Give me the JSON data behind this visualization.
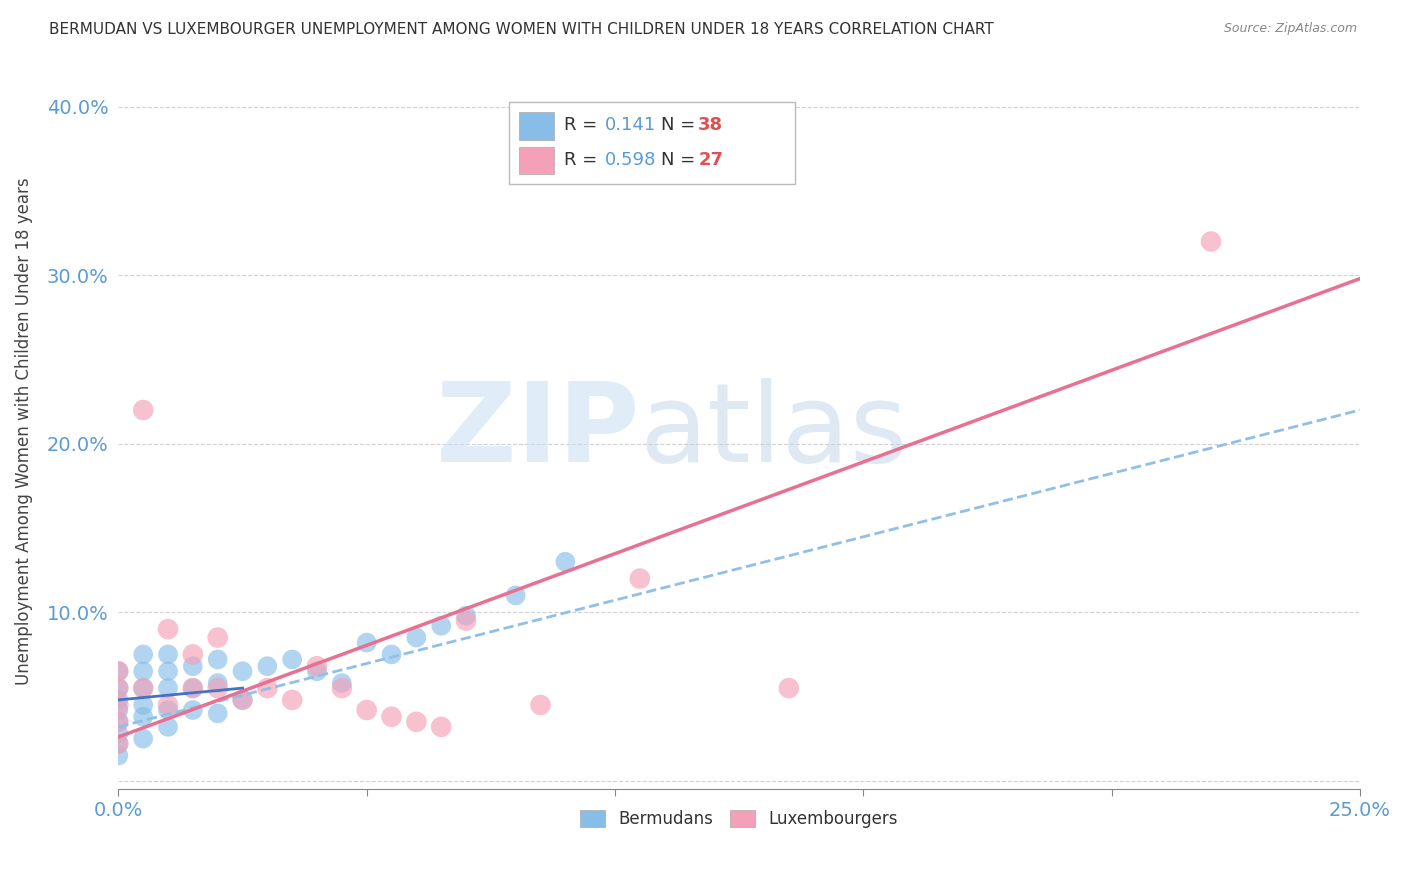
{
  "title": "BERMUDAN VS LUXEMBOURGER UNEMPLOYMENT AMONG WOMEN WITH CHILDREN UNDER 18 YEARS CORRELATION CHART",
  "source": "Source: ZipAtlas.com",
  "ylabel_label": "Unemployment Among Women with Children Under 18 years",
  "xlim": [
    0.0,
    0.25
  ],
  "ylim": [
    -0.005,
    0.42
  ],
  "yticks": [
    0.0,
    0.1,
    0.2,
    0.3,
    0.4
  ],
  "ytick_labels": [
    "",
    "10.0%",
    "20.0%",
    "30.0%",
    "40.0%"
  ],
  "bermudans_color": "#88bde8",
  "luxembourgers_color": "#f4a0b8",
  "trend_bermudans_color": "#90c0e8",
  "trend_luxembourgers_color": "#e87090",
  "r_bermudans": 0.141,
  "n_bermudans": 38,
  "r_luxembourgers": 0.598,
  "n_luxembourgers": 27,
  "bermudans_x": [
    0.0,
    0.0,
    0.0,
    0.0,
    0.0,
    0.0,
    0.0,
    0.0,
    0.005,
    0.005,
    0.005,
    0.005,
    0.005,
    0.005,
    0.01,
    0.01,
    0.01,
    0.01,
    0.01,
    0.015,
    0.015,
    0.015,
    0.02,
    0.02,
    0.02,
    0.025,
    0.025,
    0.03,
    0.035,
    0.04,
    0.045,
    0.05,
    0.055,
    0.06,
    0.065,
    0.07,
    0.08,
    0.09
  ],
  "bermudans_y": [
    0.065,
    0.055,
    0.048,
    0.042,
    0.035,
    0.028,
    0.022,
    0.015,
    0.075,
    0.065,
    0.055,
    0.045,
    0.038,
    0.025,
    0.075,
    0.065,
    0.055,
    0.042,
    0.032,
    0.068,
    0.055,
    0.042,
    0.072,
    0.058,
    0.04,
    0.065,
    0.048,
    0.068,
    0.072,
    0.065,
    0.058,
    0.082,
    0.075,
    0.085,
    0.092,
    0.098,
    0.11,
    0.13
  ],
  "luxembourgers_x": [
    0.0,
    0.0,
    0.0,
    0.0,
    0.0,
    0.005,
    0.005,
    0.01,
    0.01,
    0.015,
    0.015,
    0.02,
    0.02,
    0.025,
    0.03,
    0.035,
    0.04,
    0.045,
    0.05,
    0.055,
    0.06,
    0.065,
    0.07,
    0.085,
    0.105,
    0.135,
    0.22
  ],
  "luxembourgers_y": [
    0.065,
    0.055,
    0.045,
    0.035,
    0.022,
    0.22,
    0.055,
    0.09,
    0.045,
    0.075,
    0.055,
    0.085,
    0.055,
    0.048,
    0.055,
    0.048,
    0.068,
    0.055,
    0.042,
    0.038,
    0.035,
    0.032,
    0.095,
    0.045,
    0.12,
    0.055,
    0.32
  ],
  "trend_lux_x0": 0.0,
  "trend_lux_y0": 0.026,
  "trend_lux_x1": 0.25,
  "trend_lux_y1": 0.298,
  "trend_berm_x0": 0.0,
  "trend_berm_y0": 0.032,
  "trend_berm_x1": 0.25,
  "trend_berm_y1": 0.22
}
